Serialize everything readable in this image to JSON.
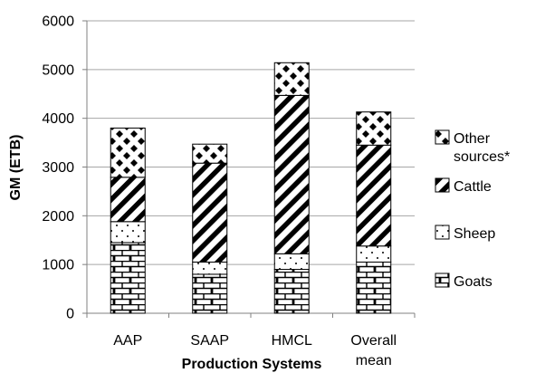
{
  "chart_data": {
    "type": "bar",
    "stacked": true,
    "title": "",
    "xlabel": "Production Systems",
    "ylabel": "GM (ETB)",
    "ylim": [
      0,
      6000
    ],
    "yticks": [
      0,
      1000,
      2000,
      3000,
      4000,
      5000,
      6000
    ],
    "grid": true,
    "legend_position": "right",
    "categories": [
      [
        "AAP"
      ],
      [
        "SAAP"
      ],
      [
        "HMCL"
      ],
      [
        "Overall",
        "mean"
      ]
    ],
    "series": [
      {
        "name": "Goats",
        "pattern": "brick",
        "values": [
          1450,
          800,
          900,
          1050
        ]
      },
      {
        "name": "Sheep",
        "pattern": "dots",
        "values": [
          430,
          250,
          320,
          330
        ]
      },
      {
        "name": "Cattle",
        "pattern": "diagonal-stripes",
        "values": [
          910,
          2030,
          3250,
          2070
        ]
      },
      {
        "name": "Other sources*",
        "pattern": "checker-diamond",
        "values": [
          1010,
          390,
          670,
          680
        ]
      }
    ],
    "legend_order": [
      [
        "Other",
        "sources*"
      ],
      [
        "Cattle"
      ],
      [
        "Sheep"
      ],
      [
        "Goats"
      ]
    ],
    "colors": {
      "bar_stroke": "#000000",
      "grid": "#a6a6a6",
      "axis": "#808080",
      "background": "#ffffff"
    }
  }
}
